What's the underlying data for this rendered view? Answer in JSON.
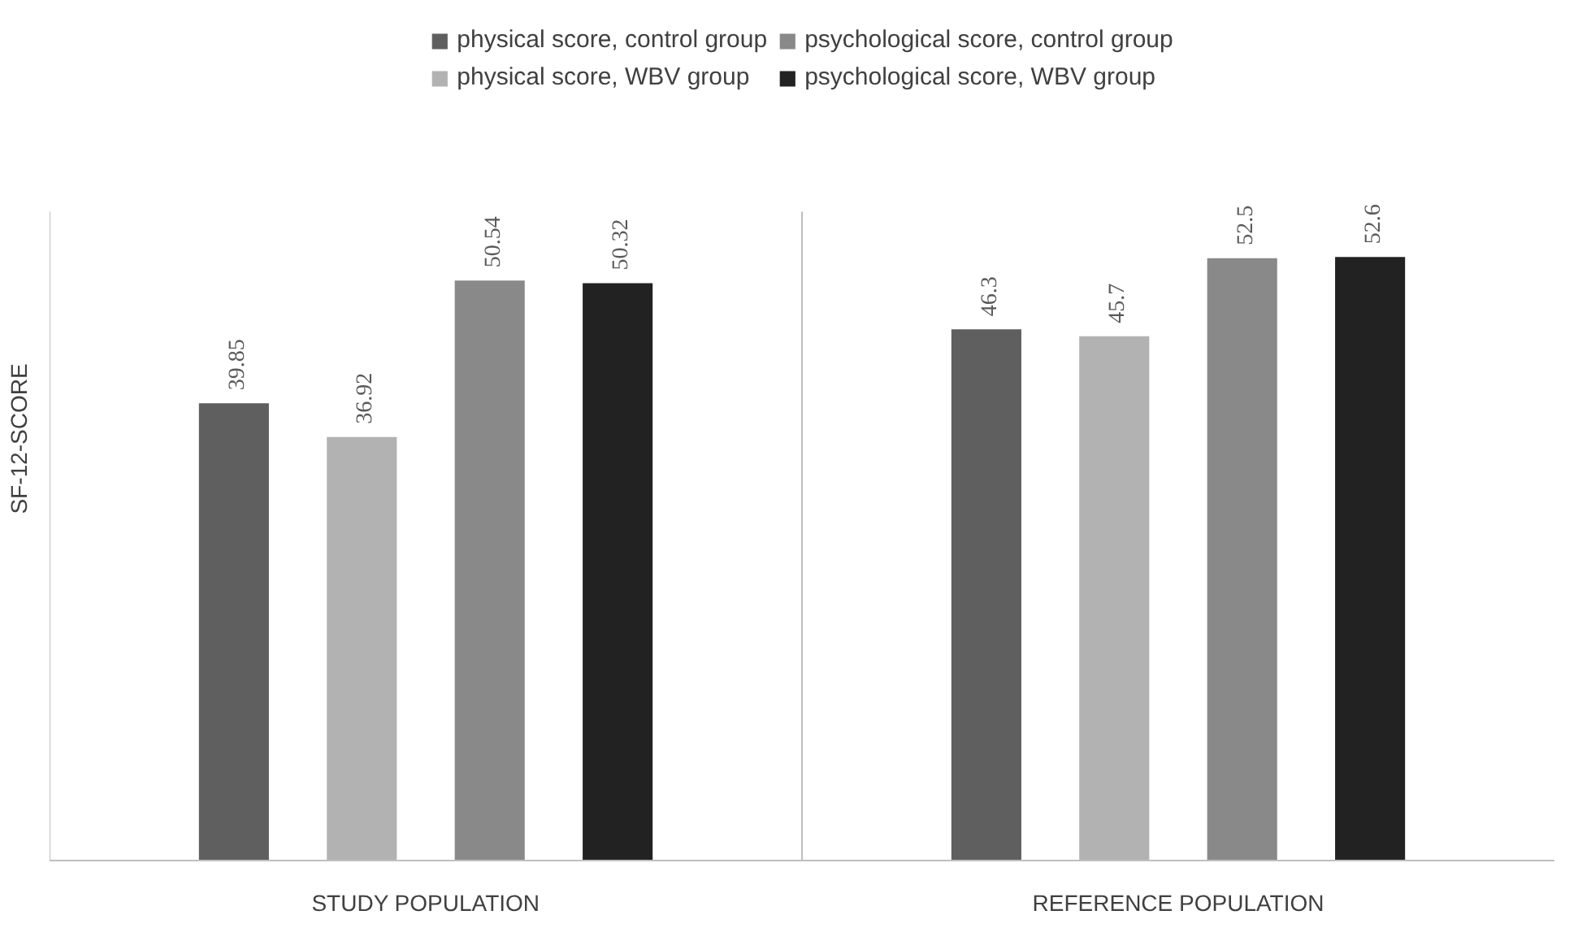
{
  "chart_data": {
    "type": "bar",
    "ylabel": "SF-12-SCORE",
    "categories": [
      "STUDY POPULATION",
      "REFERENCE POPULATION"
    ],
    "series": [
      {
        "name": "physical score, control group",
        "color": "#5f5f5f",
        "values": [
          39.85,
          46.3
        ]
      },
      {
        "name": "physical score, WBV group",
        "color": "#b2b2b2",
        "values": [
          36.92,
          45.7
        ]
      },
      {
        "name": "psychological score, control group",
        "color": "#898989",
        "values": [
          50.54,
          52.5
        ]
      },
      {
        "name": "psychological score, WBV group",
        "color": "#222222",
        "values": [
          50.32,
          52.6
        ]
      }
    ],
    "data_labels": true,
    "grid": false,
    "legend": "top",
    "tick_labels": "x"
  }
}
